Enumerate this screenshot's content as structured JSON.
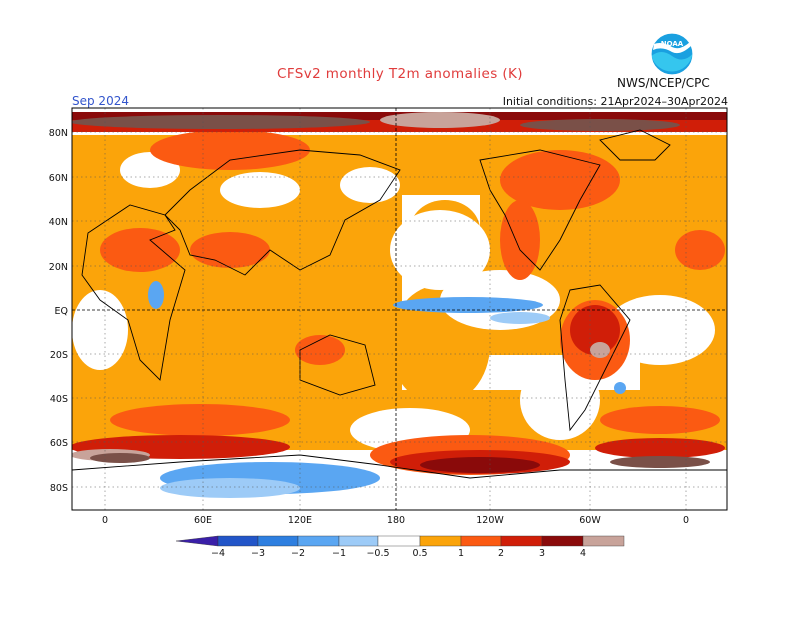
{
  "header": {
    "title": "CFSv2 monthly T2m anomalies (K)",
    "month": "Sep 2024",
    "initial_conditions": "Initial conditions: 21Apr2024–30Apr2024",
    "agency": "NWS/NCEP/CPC",
    "logo_text": "NOAA"
  },
  "map": {
    "lat_labels": [
      "80N",
      "60N",
      "40N",
      "20N",
      "EQ",
      "20S",
      "40S",
      "60S",
      "80S"
    ],
    "lon_labels": [
      "0",
      "60E",
      "120E",
      "180",
      "120W",
      "60W",
      "0"
    ],
    "lat_ticks": [
      80,
      60,
      40,
      20,
      0,
      -20,
      -40,
      -60,
      -80
    ],
    "lon_ticks": [
      0,
      60,
      120,
      180,
      240,
      300,
      360
    ],
    "lon_range": [
      -20,
      380
    ],
    "lat_range": [
      -90,
      90
    ]
  },
  "colorbar": {
    "labels": [
      "−4",
      "−3",
      "−2",
      "−1",
      "−0.5",
      "0.5",
      "1",
      "2",
      "3",
      "4"
    ],
    "colors": [
      "#3a1fa8",
      "#2255c8",
      "#2e7fe0",
      "#5aa6f2",
      "#9dcbf7",
      "#ffffff",
      "#fba40a",
      "#fb5a12",
      "#d01e08",
      "#8a0a0a",
      "#c8a39a",
      "#7a5048"
    ]
  }
}
